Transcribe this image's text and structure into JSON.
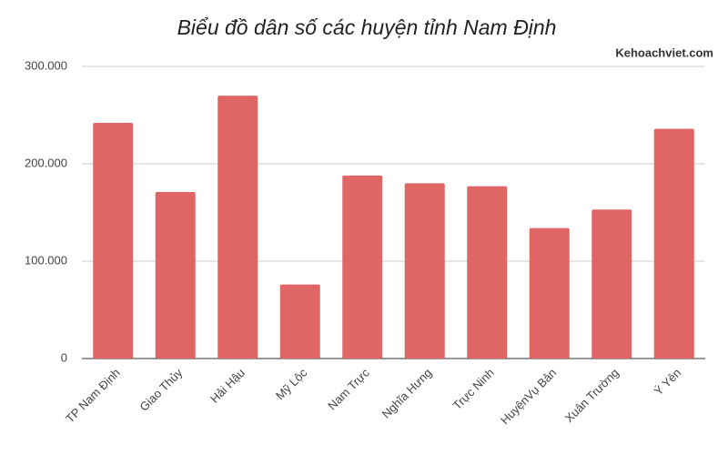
{
  "chart_data": {
    "type": "bar",
    "title": "Biểu đồ dân số các huyện tỉnh Nam Định",
    "watermark": "Kehoachviet.com",
    "categories": [
      "TP Nam Định",
      "Giao Thủy",
      "Hải Hậu",
      "Mỹ Lộc",
      "Nam Trực",
      "Nghĩa Hưng",
      "Trực Ninh",
      "HuyệnVụ Bản",
      "Xuân Trường",
      "Ý Yên"
    ],
    "values": [
      242000,
      171000,
      270000,
      76000,
      188000,
      180000,
      177000,
      134000,
      153000,
      236000
    ],
    "color": "#e06666",
    "ylim": [
      0,
      300000
    ],
    "yticks": [
      0,
      {
        "value": 100000,
        "label": "100.000"
      },
      {
        "value": 200000,
        "label": "200.000"
      },
      {
        "value": 300000,
        "label": "300.000"
      }
    ],
    "grid": true
  }
}
